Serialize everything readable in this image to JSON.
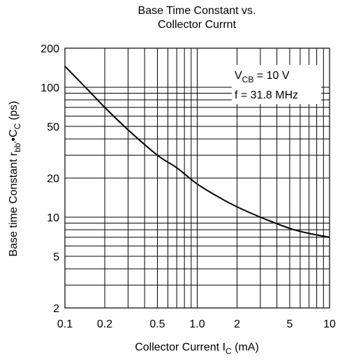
{
  "chart_data": {
    "type": "line",
    "title_line1": "Base Time Constant vs.",
    "title_line2": "Collector Currnt",
    "x_scale": "log",
    "y_scale": "log",
    "xlim": [
      0.1,
      10
    ],
    "ylim": [
      2,
      200
    ],
    "grid": true,
    "xlabel_main": "Collector Current  I",
    "xlabel_sub": "C",
    "xlabel_unit": "  (mA)",
    "ylabel_main": "Base time Constant  r",
    "ylabel_sub1": "bb'",
    "ylabel_mid": "•C",
    "ylabel_sub2": "C",
    "ylabel_unit": "  (ps)",
    "x_ticks": [
      {
        "value": 0.1,
        "label": "0.1"
      },
      {
        "value": 0.2,
        "label": "0.2"
      },
      {
        "value": 0.5,
        "label": "0.5"
      },
      {
        "value": 1.0,
        "label": "1.0"
      },
      {
        "value": 2,
        "label": "2"
      },
      {
        "value": 5,
        "label": "5"
      },
      {
        "value": 10,
        "label": "10"
      }
    ],
    "y_ticks": [
      {
        "value": 2,
        "label": "2"
      },
      {
        "value": 5,
        "label": "5"
      },
      {
        "value": 10,
        "label": "10"
      },
      {
        "value": 20,
        "label": "20"
      },
      {
        "value": 50,
        "label": "50"
      },
      {
        "value": 100,
        "label": "100"
      },
      {
        "value": 200,
        "label": "200"
      }
    ],
    "annotation": {
      "line1_main": "V",
      "line1_sub": "CB",
      "line1_rest": " = 10 V",
      "line2": "f = 31.8 MHz"
    },
    "series": [
      {
        "x": [
          0.1,
          0.15,
          0.2,
          0.3,
          0.5,
          0.7,
          1.0,
          1.5,
          2.0,
          3.0,
          5.0,
          7.0,
          10.0
        ],
        "y": [
          145,
          95,
          70,
          47,
          30,
          24,
          18,
          14,
          12,
          10,
          8.2,
          7.5,
          7.0
        ]
      }
    ]
  }
}
